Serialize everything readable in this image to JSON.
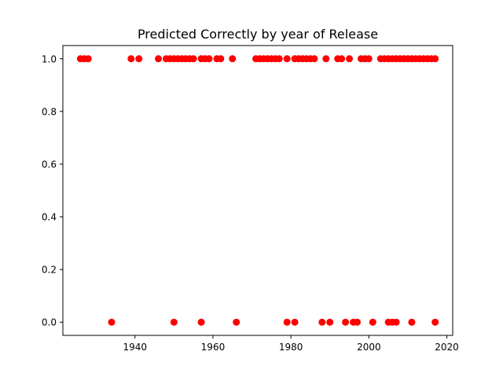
{
  "chart_data": {
    "type": "scatter",
    "title": "Predicted Correctly by year of Release",
    "xlabel": "",
    "ylabel": "",
    "xlim": [
      1921.5,
      2021.5
    ],
    "ylim": [
      -0.05,
      1.05
    ],
    "xticks": [
      1940,
      1960,
      1980,
      2000,
      2020
    ],
    "yticks": [
      0.0,
      0.2,
      0.4,
      0.6,
      0.8,
      1.0
    ],
    "ytick_labels": [
      "0.0",
      "0.2",
      "0.4",
      "0.6",
      "0.8",
      "1.0"
    ],
    "grid": false,
    "legend": "none",
    "marker_color": "#ff0000",
    "points": [
      {
        "x": 1926,
        "y": 1
      },
      {
        "x": 1927,
        "y": 1
      },
      {
        "x": 1928,
        "y": 1
      },
      {
        "x": 1934,
        "y": 0
      },
      {
        "x": 1939,
        "y": 1
      },
      {
        "x": 1941,
        "y": 1
      },
      {
        "x": 1946,
        "y": 1
      },
      {
        "x": 1948,
        "y": 1
      },
      {
        "x": 1949,
        "y": 1
      },
      {
        "x": 1950,
        "y": 1
      },
      {
        "x": 1950,
        "y": 0
      },
      {
        "x": 1951,
        "y": 1
      },
      {
        "x": 1952,
        "y": 1
      },
      {
        "x": 1953,
        "y": 1
      },
      {
        "x": 1954,
        "y": 1
      },
      {
        "x": 1955,
        "y": 1
      },
      {
        "x": 1957,
        "y": 1
      },
      {
        "x": 1958,
        "y": 1
      },
      {
        "x": 1959,
        "y": 1
      },
      {
        "x": 1957,
        "y": 0
      },
      {
        "x": 1961,
        "y": 1
      },
      {
        "x": 1962,
        "y": 1
      },
      {
        "x": 1965,
        "y": 1
      },
      {
        "x": 1966,
        "y": 0
      },
      {
        "x": 1971,
        "y": 1
      },
      {
        "x": 1972,
        "y": 1
      },
      {
        "x": 1973,
        "y": 1
      },
      {
        "x": 1974,
        "y": 1
      },
      {
        "x": 1975,
        "y": 1
      },
      {
        "x": 1976,
        "y": 1
      },
      {
        "x": 1977,
        "y": 1
      },
      {
        "x": 1979,
        "y": 1
      },
      {
        "x": 1979,
        "y": 0
      },
      {
        "x": 1981,
        "y": 1
      },
      {
        "x": 1981,
        "y": 0
      },
      {
        "x": 1982,
        "y": 1
      },
      {
        "x": 1983,
        "y": 1
      },
      {
        "x": 1984,
        "y": 1
      },
      {
        "x": 1985,
        "y": 1
      },
      {
        "x": 1986,
        "y": 1
      },
      {
        "x": 1988,
        "y": 0
      },
      {
        "x": 1989,
        "y": 1
      },
      {
        "x": 1990,
        "y": 0
      },
      {
        "x": 1992,
        "y": 1
      },
      {
        "x": 1993,
        "y": 1
      },
      {
        "x": 1994,
        "y": 0
      },
      {
        "x": 1995,
        "y": 1
      },
      {
        "x": 1996,
        "y": 0
      },
      {
        "x": 1997,
        "y": 0
      },
      {
        "x": 1998,
        "y": 1
      },
      {
        "x": 1999,
        "y": 1
      },
      {
        "x": 2000,
        "y": 1
      },
      {
        "x": 2001,
        "y": 0
      },
      {
        "x": 2003,
        "y": 1
      },
      {
        "x": 2004,
        "y": 1
      },
      {
        "x": 2005,
        "y": 1
      },
      {
        "x": 2005,
        "y": 0
      },
      {
        "x": 2006,
        "y": 0
      },
      {
        "x": 2007,
        "y": 0
      },
      {
        "x": 2006,
        "y": 1
      },
      {
        "x": 2007,
        "y": 1
      },
      {
        "x": 2008,
        "y": 1
      },
      {
        "x": 2009,
        "y": 1
      },
      {
        "x": 2010,
        "y": 1
      },
      {
        "x": 2011,
        "y": 1
      },
      {
        "x": 2011,
        "y": 0
      },
      {
        "x": 2012,
        "y": 1
      },
      {
        "x": 2013,
        "y": 1
      },
      {
        "x": 2014,
        "y": 1
      },
      {
        "x": 2015,
        "y": 1
      },
      {
        "x": 2016,
        "y": 1
      },
      {
        "x": 2017,
        "y": 1
      },
      {
        "x": 2017,
        "y": 0
      }
    ]
  }
}
